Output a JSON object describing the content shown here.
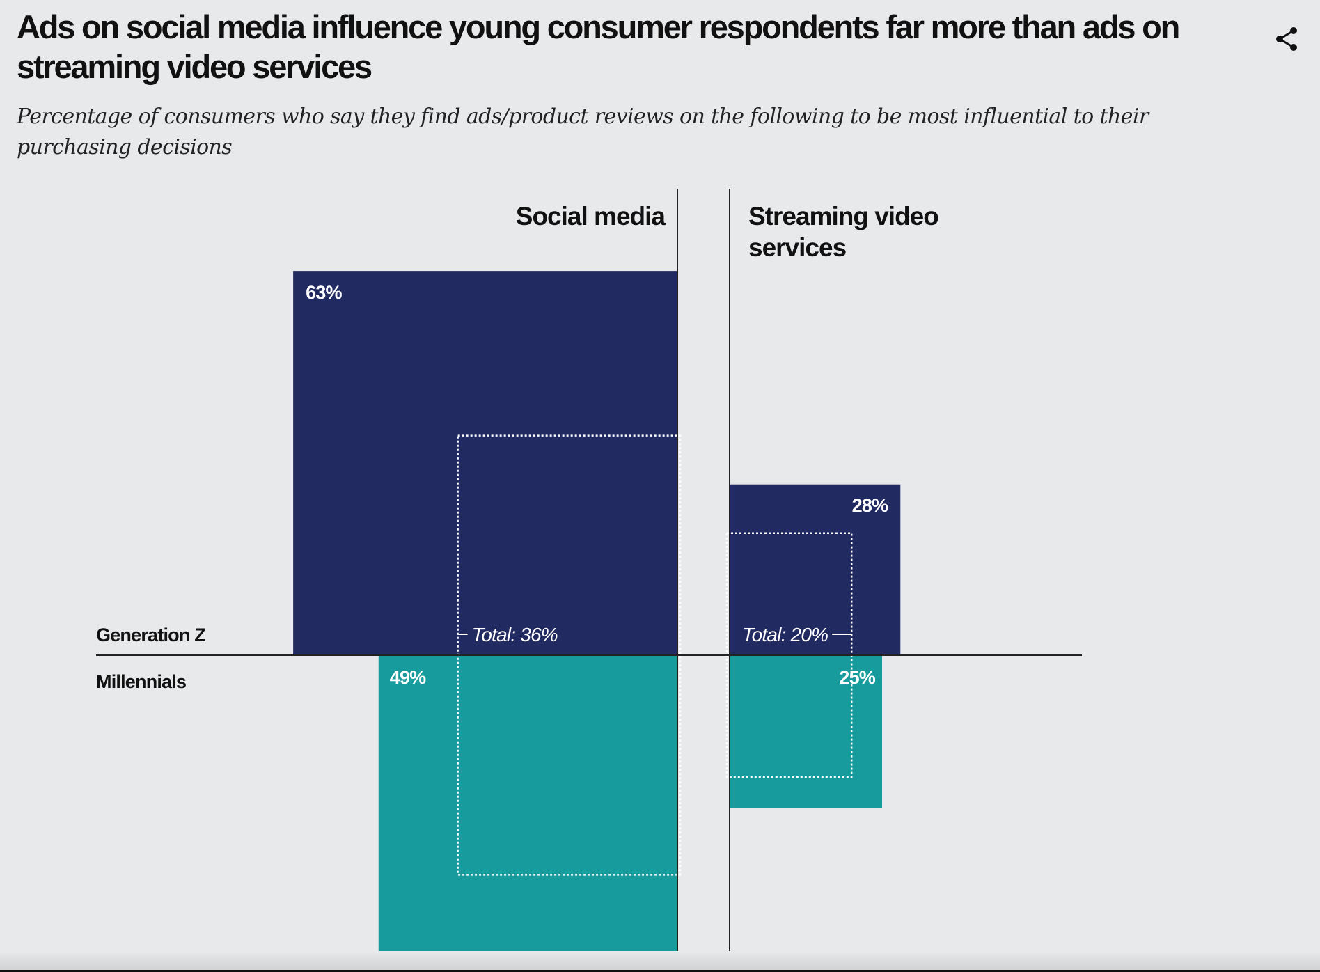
{
  "header": {
    "title": "Ads on social media influence young consumer respondents far more than ads on streaming video services",
    "subtitle": "Percentage of consumers who say they find ads/product reviews on the following to be most influential to their purchasing decisions",
    "share_icon": "share-icon"
  },
  "colors": {
    "gen_z": "#222a62",
    "millennials": "#189b9c",
    "background": "#e8e9eb"
  },
  "chart_data": {
    "type": "bar",
    "title": "Ads on social media influence young consumer respondents far more than ads on streaming video services",
    "subtitle": "Percentage of consumers who say they find ads/product reviews on the following to be most influential to their purchasing decisions",
    "categories": [
      "Social media",
      "Streaming video services"
    ],
    "category_label_lines": [
      [
        "Social media"
      ],
      [
        "Streaming video",
        "services"
      ]
    ],
    "row_labels": [
      "Generation Z",
      "Millennials"
    ],
    "series": [
      {
        "name": "Generation Z",
        "values": [
          63,
          28
        ],
        "labels": [
          "63%",
          "28%"
        ]
      },
      {
        "name": "Millennials",
        "values": [
          49,
          25
        ],
        "labels": [
          "49%",
          "25%"
        ]
      }
    ],
    "totals": {
      "values": [
        36,
        20
      ],
      "labels": [
        "Total: 36%",
        "Total: 20%"
      ]
    },
    "unit": "%"
  }
}
